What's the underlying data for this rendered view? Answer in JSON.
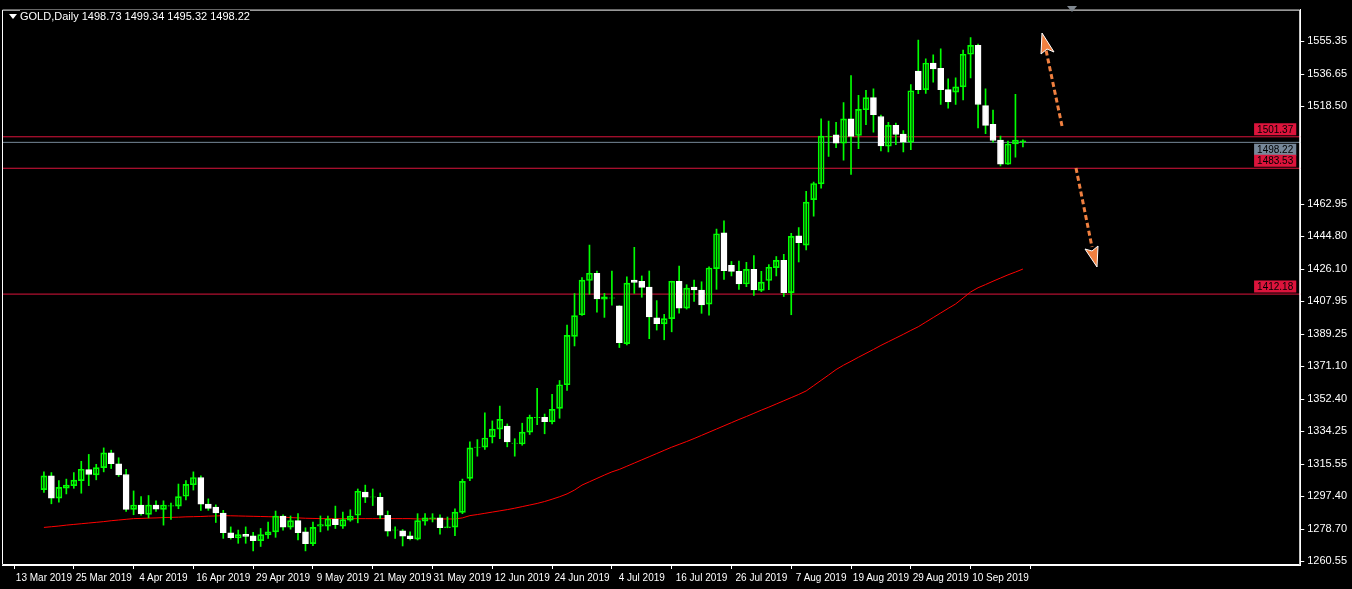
{
  "chart_data": {
    "type": "candlestick",
    "title": "GOLD,Daily 1498.73 1499.34 1495.32 1498.22",
    "categories": [
      "13 Mar 2019",
      null,
      null,
      null,
      null,
      null,
      null,
      null,
      "25 Mar 2019",
      null,
      null,
      null,
      null,
      null,
      null,
      null,
      "4 Apr 2019",
      null,
      null,
      null,
      null,
      null,
      null,
      null,
      "16 Apr 2019",
      null,
      null,
      null,
      null,
      null,
      null,
      null,
      "29 Apr 2019",
      null,
      null,
      null,
      null,
      null,
      null,
      null,
      "9 May 2019",
      null,
      null,
      null,
      null,
      null,
      null,
      null,
      "21 May 2019",
      null,
      null,
      null,
      null,
      null,
      null,
      null,
      "31 May 2019",
      null,
      null,
      null,
      null,
      null,
      null,
      null,
      "12 Jun 2019",
      null,
      null,
      null,
      null,
      null,
      null,
      null,
      "24 Jun 2019",
      null,
      null,
      null,
      null,
      null,
      null,
      null,
      "4 Jul 2019",
      null,
      null,
      null,
      null,
      null,
      null,
      null,
      "16 Jul 2019",
      null,
      null,
      null,
      null,
      null,
      null,
      null,
      "26 Jul 2019",
      null,
      null,
      null,
      null,
      null,
      null,
      null,
      "7 Aug 2019",
      null,
      null,
      null,
      null,
      null,
      null,
      null,
      "19 Aug 2019",
      null,
      null,
      null,
      null,
      null,
      null,
      null,
      "29 Aug 2019",
      null,
      null,
      null,
      null,
      null,
      null,
      null,
      "10 Sep 2019",
      null,
      null,
      null
    ],
    "series": [
      {
        "color": "#00ff00",
        "colors": [
          "#00ff00",
          "#ffffff",
          "#00ff00",
          "#00ff00",
          "#00ff00",
          "#00ff00",
          "#ffffff",
          "#00ff00",
          "#00ff00",
          "#ffffff",
          "#ffffff",
          "#ffffff",
          "#00ff00",
          "#ffffff",
          "#00ff00",
          "#ffffff",
          "#00ff00",
          "#00ff00",
          "#00ff00",
          "#00ff00",
          "#00ff00",
          "#ffffff",
          "#ffffff",
          "#ffffff",
          "#ffffff",
          "#ffffff",
          "#00ff00",
          "#ffffff",
          "#ffffff",
          "#00ff00",
          "#00ff00",
          "#00ff00",
          "#ffffff",
          "#00ff00",
          "#ffffff",
          "#ffffff",
          "#00ff00",
          "#00ff00",
          "#00ff00",
          "#ffffff",
          "#00ff00",
          "#00ff00",
          "#00ff00",
          "#ffffff",
          "#00ff00",
          "#ffffff",
          "#ffffff",
          "#00ff00",
          "#ffffff",
          "#ffffff",
          "#00ff00",
          "#00ff00",
          "#00ff00",
          "#ffffff",
          "#00ff00",
          "#00ff00",
          "#00ff00",
          "#00ff00",
          "#00ff00",
          "#00ff00",
          "#00ff00",
          "#00ff00",
          "#ffffff",
          "#00ff00",
          "#00ff00",
          "#00ff00",
          "#00ff00",
          "#ffffff",
          "#00ff00",
          "#00ff00",
          "#00ff00",
          "#00ff00",
          "#00ff00",
          "#00ff00",
          "#ffffff",
          "#00ff00",
          "#00ff00",
          "#ffffff",
          "#00ff00",
          "#ffffff",
          "#ffffff",
          "#ffffff",
          "#ffffff",
          "#00ff00",
          "#00ff00",
          "#ffffff",
          "#00ff00",
          "#ffffff",
          "#ffffff",
          "#00ff00",
          "#00ff00",
          "#ffffff",
          "#ffffff",
          "#ffffff",
          "#00ff00",
          "#ffffff",
          "#00ff00",
          "#00ff00",
          "#00ff00",
          "#ffffff",
          "#00ff00",
          "#ffffff",
          "#00ff00",
          "#00ff00",
          "#00ff00",
          "#00ff00",
          "#ffffff",
          "#00ff00",
          "#ffffff",
          "#00ff00",
          "#00ff00",
          "#ffffff",
          "#ffffff",
          "#00ff00",
          "#ffffff",
          "#ffffff",
          "#00ff00",
          "#ffffff",
          "#00ff00",
          "#ffffff",
          "#ffffff",
          "#ffffff",
          "#00ff00",
          "#00ff00",
          "#00ff00",
          "#ffffff",
          "#ffffff",
          "#ffffff",
          "#ffffff",
          "#00ff00",
          "#00ff00",
          "#00ff00"
        ],
        "ohlc": [
          [
            1301.0,
            1311.1,
            1299.5,
            1308.8
          ],
          [
            1308.8,
            1310.7,
            1293.0,
            1296.2
          ],
          [
            1296.2,
            1306.1,
            1293.9,
            1302.3
          ],
          [
            1301.8,
            1307.0,
            1298.6,
            1303.6
          ],
          [
            1303.3,
            1310.7,
            1301.8,
            1306.4
          ],
          [
            1306.1,
            1317.1,
            1299.0,
            1312.6
          ],
          [
            1312.4,
            1321.0,
            1303.3,
            1309.6
          ],
          [
            1309.4,
            1315.4,
            1306.6,
            1313.5
          ],
          [
            1313.5,
            1324.7,
            1311.1,
            1321.9
          ],
          [
            1321.9,
            1323.4,
            1313.0,
            1315.7
          ],
          [
            1315.7,
            1319.1,
            1308.5,
            1309.4
          ],
          [
            1309.6,
            1312.6,
            1288.7,
            1289.8
          ],
          [
            1289.8,
            1300.3,
            1286.8,
            1292.3
          ],
          [
            1292.3,
            1297.1,
            1286.5,
            1287.2
          ],
          [
            1287.0,
            1297.7,
            1285.0,
            1292.3
          ],
          [
            1292.3,
            1294.7,
            1288.7,
            1290.0
          ],
          [
            1289.8,
            1294.7,
            1280.9,
            1292.3
          ],
          [
            1291.7,
            1293.4,
            1284.2,
            1292.0
          ],
          [
            1291.7,
            1304.2,
            1290.2,
            1297.1
          ],
          [
            1297.3,
            1306.1,
            1295.2,
            1304.0
          ],
          [
            1303.8,
            1311.1,
            1300.8,
            1307.9
          ],
          [
            1307.9,
            1308.8,
            1289.3,
            1292.8
          ],
          [
            1292.8,
            1295.8,
            1289.3,
            1290.4
          ],
          [
            1291.1,
            1292.4,
            1282.4,
            1287.8
          ],
          [
            1287.8,
            1289.3,
            1273.4,
            1276.6
          ],
          [
            1276.6,
            1279.9,
            1273.0,
            1273.8
          ],
          [
            1273.6,
            1278.1,
            1270.6,
            1275.5
          ],
          [
            1275.7,
            1279.9,
            1270.6,
            1274.5
          ],
          [
            1274.9,
            1276.8,
            1266.3,
            1272.1
          ],
          [
            1272.1,
            1279.0,
            1268.8,
            1275.5
          ],
          [
            1275.3,
            1282.7,
            1273.4,
            1277.1
          ],
          [
            1277.1,
            1288.9,
            1274.0,
            1286.1
          ],
          [
            1286.1,
            1286.8,
            1278.1,
            1279.8
          ],
          [
            1279.8,
            1286.1,
            1278.6,
            1283.5
          ],
          [
            1283.5,
            1287.4,
            1272.5,
            1276.6
          ],
          [
            1277.1,
            1279.4,
            1266.3,
            1270.4
          ],
          [
            1270.4,
            1282.7,
            1269.3,
            1279.6
          ],
          [
            1280.3,
            1286.1,
            1277.1,
            1281.2
          ],
          [
            1280.3,
            1286.1,
            1278.1,
            1284.4
          ],
          [
            1284.4,
            1291.7,
            1279.0,
            1281.1
          ],
          [
            1280.3,
            1288.3,
            1279.0,
            1284.0
          ],
          [
            1283.7,
            1289.6,
            1283.1,
            1286.1
          ],
          [
            1286.5,
            1301.4,
            1282.2,
            1300.1
          ],
          [
            1299.7,
            1303.6,
            1293.7,
            1296.7
          ],
          [
            1296.7,
            1301.4,
            1292.0,
            1296.9
          ],
          [
            1296.7,
            1299.1,
            1284.6,
            1286.5
          ],
          [
            1286.5,
            1288.9,
            1274.7,
            1277.5
          ],
          [
            1278.1,
            1279.9,
            1273.4,
            1278.3
          ],
          [
            1277.7,
            1278.4,
            1269.1,
            1274.7
          ],
          [
            1274.9,
            1277.1,
            1272.5,
            1273.2
          ],
          [
            1273.0,
            1287.4,
            1272.5,
            1283.5
          ],
          [
            1283.1,
            1287.4,
            1280.9,
            1285.0
          ],
          [
            1284.4,
            1287.4,
            1282.7,
            1285.0
          ],
          [
            1285.0,
            1286.8,
            1275.8,
            1279.4
          ],
          [
            1279.4,
            1285.5,
            1279.4,
            1279.9
          ],
          [
            1279.8,
            1290.2,
            1274.9,
            1288.3
          ],
          [
            1288.1,
            1307.0,
            1287.4,
            1305.7
          ],
          [
            1307.4,
            1328.1,
            1306.1,
            1324.7
          ],
          [
            1325.0,
            1329.4,
            1320.0,
            1325.2
          ],
          [
            1325.1,
            1344.6,
            1323.8,
            1330.3
          ],
          [
            1330.9,
            1340.0,
            1327.5,
            1335.3
          ],
          [
            1335.3,
            1348.4,
            1329.9,
            1340.9
          ],
          [
            1337.0,
            1338.3,
            1325.3,
            1328.1
          ],
          [
            1327.2,
            1329.9,
            1320.0,
            1327.4
          ],
          [
            1326.9,
            1338.7,
            1326.2,
            1333.6
          ],
          [
            1333.6,
            1343.3,
            1332.3,
            1342.0
          ],
          [
            1341.8,
            1358.4,
            1337.8,
            1342.0
          ],
          [
            1342.0,
            1343.9,
            1332.7,
            1339.6
          ],
          [
            1339.6,
            1355.1,
            1338.3,
            1346.5
          ],
          [
            1347.1,
            1362.9,
            1341.5,
            1360.5
          ],
          [
            1360.5,
            1394.3,
            1357.3,
            1388.5
          ],
          [
            1387.9,
            1412.2,
            1382.5,
            1399.7
          ],
          [
            1400.2,
            1421.3,
            1399.8,
            1419.8
          ],
          [
            1419.6,
            1439.7,
            1411.8,
            1423.7
          ],
          [
            1423.7,
            1425.0,
            1401.7,
            1409.2
          ],
          [
            1409.0,
            1412.3,
            1398.7,
            1410.3
          ],
          [
            1409.6,
            1425.0,
            1405.6,
            1409.8
          ],
          [
            1405.3,
            1405.3,
            1381.6,
            1384.4
          ],
          [
            1383.8,
            1421.7,
            1383.1,
            1418.1
          ],
          [
            1419.8,
            1438.4,
            1412.3,
            1418.5
          ],
          [
            1419.2,
            1422.2,
            1410.1,
            1415.7
          ],
          [
            1415.9,
            1425.0,
            1386.6,
            1398.9
          ],
          [
            1398.5,
            1408.2,
            1391.5,
            1395.2
          ],
          [
            1395.0,
            1400.4,
            1386.0,
            1398.0
          ],
          [
            1398.0,
            1419.2,
            1390.5,
            1419.2
          ],
          [
            1419.2,
            1427.8,
            1401.1,
            1403.9
          ],
          [
            1403.9,
            1417.2,
            1403.4,
            1415.3
          ],
          [
            1415.9,
            1419.8,
            1407.7,
            1414.2
          ],
          [
            1414.2,
            1418.9,
            1401.0,
            1405.8
          ],
          [
            1406.2,
            1427.3,
            1400.0,
            1426.7
          ],
          [
            1426.3,
            1448.7,
            1414.6,
            1446.1
          ],
          [
            1446.6,
            1453.4,
            1420.2,
            1425.2
          ],
          [
            1428.2,
            1430.4,
            1422.2,
            1424.8
          ],
          [
            1424.8,
            1430.6,
            1414.6,
            1417.6
          ],
          [
            1417.6,
            1429.9,
            1416.1,
            1425.9
          ],
          [
            1425.9,
            1433.8,
            1411.2,
            1414.2
          ],
          [
            1414.0,
            1424.8,
            1413.3,
            1418.7
          ],
          [
            1419.6,
            1428.6,
            1414.4,
            1427.1
          ],
          [
            1426.9,
            1433.2,
            1422.2,
            1431.0
          ],
          [
            1431.0,
            1434.5,
            1410.5,
            1412.7
          ],
          [
            1412.7,
            1446.3,
            1400.2,
            1444.6
          ],
          [
            1445.0,
            1449.6,
            1430.1,
            1441.1
          ],
          [
            1439.7,
            1470.1,
            1436.9,
            1464.0
          ],
          [
            1465.5,
            1475.4,
            1456.1,
            1474.6
          ],
          [
            1474.4,
            1511.2,
            1472.0,
            1501.5
          ],
          [
            1501.2,
            1510.0,
            1489.9,
            1501.4
          ],
          [
            1502.2,
            1509.3,
            1494.9,
            1497.5
          ],
          [
            1497.4,
            1520.5,
            1487.8,
            1511.2
          ],
          [
            1511.2,
            1535.8,
            1479.8,
            1501.3
          ],
          [
            1501.8,
            1524.6,
            1494.4,
            1516.6
          ],
          [
            1516.4,
            1527.4,
            1508.0,
            1523.3
          ],
          [
            1523.3,
            1528.3,
            1503.7,
            1513.6
          ],
          [
            1512.6,
            1513.4,
            1493.1,
            1495.9
          ],
          [
            1495.7,
            1509.3,
            1492.5,
            1507.6
          ],
          [
            1507.6,
            1508.9,
            1496.6,
            1502.4
          ],
          [
            1502.6,
            1504.6,
            1492.5,
            1498.1
          ],
          [
            1498.1,
            1530.7,
            1493.8,
            1527.2
          ],
          [
            1538.4,
            1555.9,
            1525.5,
            1527.8
          ],
          [
            1527.8,
            1545.3,
            1525.7,
            1542.9
          ],
          [
            1542.9,
            1547.5,
            1532.0,
            1539.5
          ],
          [
            1539.9,
            1550.9,
            1519.5,
            1527.8
          ],
          [
            1527.8,
            1533.9,
            1517.3,
            1520.9
          ],
          [
            1526.4,
            1534.5,
            1519.5,
            1529.4
          ],
          [
            1529.4,
            1550.3,
            1522.0,
            1547.9
          ],
          [
            1547.9,
            1557.4,
            1534.5,
            1552.9
          ],
          [
            1552.9,
            1553.7,
            1506.1,
            1519.4
          ],
          [
            1518.8,
            1528.3,
            1502.8,
            1507.6
          ],
          [
            1508.2,
            1516.2,
            1498.1,
            1499.0
          ],
          [
            1499.2,
            1501.5,
            1484.5,
            1485.6
          ],
          [
            1485.6,
            1498.7,
            1485.4,
            1497.0
          ],
          [
            1497.0,
            1525.1,
            1489.5,
            1499.2
          ],
          [
            1498.73,
            1499.34,
            1495.32,
            1498.22
          ]
        ]
      },
      {
        "type": "line",
        "color": "#ff0000",
        "values": [
          1279.6,
          1280.0,
          1280.4,
          1280.9,
          1281.3,
          1281.7,
          1282.1,
          1282.5,
          1282.9,
          1283.4,
          1283.8,
          1284.2,
          1284.6,
          1284.7,
          1284.9,
          1285.0,
          1285.2,
          1285.3,
          1285.4,
          1285.6,
          1285.7,
          1285.8,
          1286.0,
          1286.1,
          1286.3,
          1286.2,
          1286.1,
          1286.0,
          1285.9,
          1285.8,
          1285.7,
          1285.6,
          1285.4,
          1285.2,
          1285.0,
          1284.8,
          1284.7,
          1284.6,
          1284.6,
          1284.6,
          1284.6,
          1284.6,
          1284.6,
          1284.6,
          1284.6,
          1284.6,
          1284.6,
          1284.6,
          1284.6,
          1284.6,
          1284.4,
          1284.4,
          1284.4,
          1284.4,
          1284.4,
          1284.4,
          1285.0,
          1286.3,
          1286.9,
          1287.6,
          1288.3,
          1289.0,
          1289.7,
          1290.5,
          1291.4,
          1292.3,
          1293.2,
          1294.3,
          1295.6,
          1297.0,
          1298.6,
          1300.8,
          1303.6,
          1305.5,
          1307.4,
          1309.3,
          1311.1,
          1312.5,
          1314.3,
          1316.1,
          1317.9,
          1319.7,
          1321.5,
          1323.3,
          1325.1,
          1326.7,
          1328.3,
          1330.0,
          1331.8,
          1333.6,
          1335.4,
          1337.2,
          1339.0,
          1340.8,
          1342.5,
          1344.3,
          1346.1,
          1347.8,
          1349.6,
          1351.4,
          1353.2,
          1355.0,
          1357.0,
          1360.0,
          1363.0,
          1366.0,
          1369.1,
          1371.6,
          1373.8,
          1376.1,
          1378.3,
          1380.5,
          1382.8,
          1384.9,
          1387.0,
          1389.1,
          1391.3,
          1393.4,
          1396.0,
          1398.6,
          1401.2,
          1403.8,
          1406.3,
          1409.7,
          1413.1,
          1415.5,
          1417.3,
          1419.2,
          1421.0,
          1422.8,
          1424.4,
          1426.1
        ]
      }
    ],
    "ylim": [
      1258.3,
      1573.2
    ],
    "yticks": [
      {
        "value": 1260.55,
        "label": "1260.55"
      },
      {
        "value": 1278.7,
        "label": "1278.70"
      },
      {
        "value": 1297.4,
        "label": "1297.40"
      },
      {
        "value": 1315.55,
        "label": "1315.55"
      },
      {
        "value": 1334.25,
        "label": "1334.25"
      },
      {
        "value": 1352.4,
        "label": "1352.40"
      },
      {
        "value": 1371.1,
        "label": "1371.10"
      },
      {
        "value": 1389.25,
        "label": "1389.25"
      },
      {
        "value": 1407.95,
        "label": "1407.95"
      },
      {
        "value": 1426.1,
        "label": "1426.10"
      },
      {
        "value": 1444.8,
        "label": "1444.80"
      },
      {
        "value": 1462.95,
        "label": "1462.95"
      },
      {
        "value": 1518.5,
        "label": "1518.50"
      },
      {
        "value": 1536.65,
        "label": "1536.65"
      },
      {
        "value": 1555.35,
        "label": "1555.35"
      }
    ],
    "ref_lines": [
      {
        "axis": "y",
        "value": 1501.37,
        "label": "1501.37",
        "color": "#dc143c"
      },
      {
        "axis": "y",
        "value": 1498.22,
        "label": "1498.22",
        "color": "#778899"
      },
      {
        "axis": "y",
        "value": 1483.53,
        "label": "1483.53",
        "color": "#dc143c"
      },
      {
        "axis": "y",
        "value": 1412.18,
        "label": "1412.18",
        "color": "#dc143c"
      }
    ]
  }
}
